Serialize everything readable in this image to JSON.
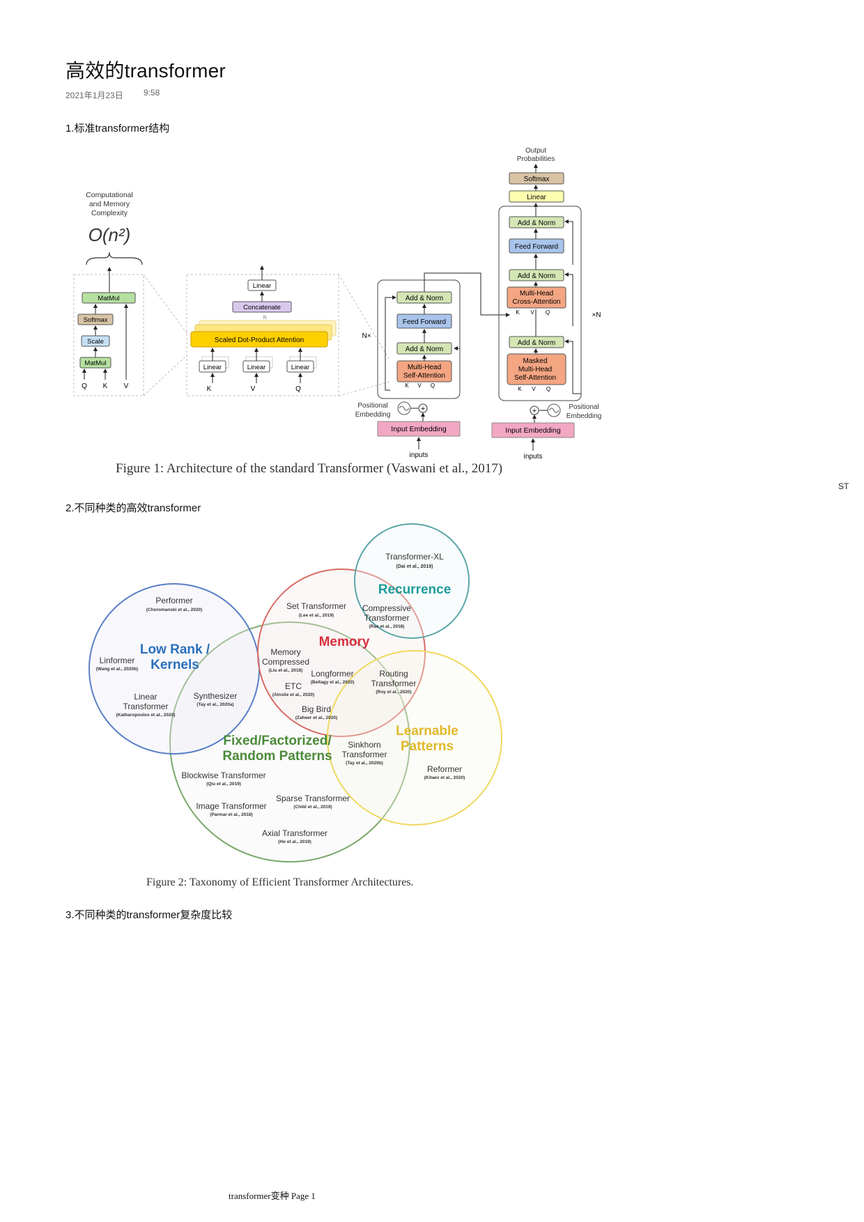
{
  "page": {
    "title": "高效的transformer",
    "date": "2021年1月23日",
    "time": "9:58",
    "side_marker": "ST",
    "footer": "transformer变种 Page 1"
  },
  "sections": [
    {
      "heading": "1.标准transformer结构"
    },
    {
      "heading": "2.不同种类的高效transformer"
    },
    {
      "heading": "3.不同种类的transformer复杂度比较"
    }
  ],
  "figure1": {
    "caption": "Figure 1:  Architecture of the standard Transformer (Vaswani et al., 2017)",
    "complexity_label": [
      "Computational",
      "and Memory",
      "Complexity"
    ],
    "complexity": "O(n²)",
    "attention_block": {
      "matmul_top": "MatMul",
      "softmax": "Softmax",
      "scale": "Scale",
      "matmul_bottom": "MatMul",
      "inputs": [
        "Q",
        "K",
        "V"
      ]
    },
    "multihead_block": {
      "linear_top": "Linear",
      "concat": "Concatenate",
      "sdpa": "Scaled Dot-Product Attention",
      "linears": [
        "Linear",
        "Linear",
        "Linear"
      ],
      "inputs": [
        "K",
        "V",
        "Q"
      ],
      "h_label": "h"
    },
    "encoder": {
      "add_norm": "Add & Norm",
      "ffn": "Feed Forward",
      "mhsa": [
        "Multi-Head",
        "Self-Attention"
      ],
      "repeat": "N×",
      "kvq": [
        "K",
        "V",
        "Q"
      ],
      "pos": [
        "Positional",
        "Embedding"
      ],
      "input_embedding": "Input Embedding",
      "inputs": "inputs"
    },
    "decoder": {
      "output_prob": [
        "Output",
        "Probabilities"
      ],
      "softmax": "Softmax",
      "linear": "Linear",
      "add_norm": "Add & Norm",
      "ffn": "Feed Forward",
      "cross": [
        "Multi-Head",
        "Cross-Attention"
      ],
      "masked": [
        "Masked",
        "Multi-Head",
        "Self-Attention"
      ],
      "repeat": "×N",
      "kvq": [
        "K",
        "V",
        "Q"
      ],
      "pos": [
        "Positional",
        "Embedding"
      ],
      "input_embedding": "Input Embedding",
      "inputs": "inputs"
    },
    "colors": {
      "add_norm": "#d4e6b5",
      "ffn": "#a9c4eb",
      "attention": "#f4a582",
      "embedding": "#f2a7c3",
      "softmax": "#d8c3a5",
      "linear": "#ffffb0",
      "sdpa": "#ffd000",
      "concat": "#d9c8ee",
      "scale": "#c5e0f5",
      "matmul": "#b5e0a0"
    }
  },
  "figure2": {
    "caption": "Figure 2:  Taxonomy of Efficient Transformer Architectures.",
    "categories": [
      {
        "name": "Low Rank /",
        "name2": "Kernels",
        "color": "#2a6fbb"
      },
      {
        "name": "Memory",
        "color": "#d8303c"
      },
      {
        "name": "Recurrence",
        "color": "#1e9c9c"
      },
      {
        "name": "Fixed/Factorized/",
        "name2": "Random Patterns",
        "color": "#4c8a3a"
      },
      {
        "name": "Learnable",
        "name2": "Patterns",
        "color": "#e0b82a"
      }
    ],
    "models": [
      {
        "name": "Transformer-XL",
        "cite": "(Dai et al., 2019)"
      },
      {
        "name": "Performer",
        "cite": "(Choromanski et al., 2020)"
      },
      {
        "name": "Set Transformer",
        "cite": "(Lee et al., 2019)"
      },
      {
        "name": "Compressive",
        "name2": "Transformer",
        "cite": "(Rae et al., 2018)"
      },
      {
        "name": "Linformer",
        "cite": "(Wang et al., 2020b)"
      },
      {
        "name": "Memory",
        "name2": "Compressed",
        "cite": "(Liu et al., 2018)"
      },
      {
        "name": "Longformer",
        "cite": "(Beltagy et al., 2020)"
      },
      {
        "name": "ETC",
        "cite": "(Ainslie et al., 2020)"
      },
      {
        "name": "Routing",
        "name2": "Transformer",
        "cite": "(Roy et al., 2020)"
      },
      {
        "name": "Linear",
        "name2": "Transformer",
        "cite": "(Katharopoulos et al., 2020)"
      },
      {
        "name": "Synthesizer",
        "cite": "(Tay et al., 2020a)"
      },
      {
        "name": "Big Bird",
        "cite": "(Zaheer et al., 2020)"
      },
      {
        "name": "Sinkhorn",
        "name2": "Transformer",
        "cite": "(Tay et al., 2020b)"
      },
      {
        "name": "Reformer",
        "cite": "(Kitaev et al., 2020)"
      },
      {
        "name": "Blockwise Transformer",
        "cite": "(Qiu et al., 2019)"
      },
      {
        "name": "Sparse Transformer",
        "cite": "(Child et al., 2019)"
      },
      {
        "name": "Image Transformer",
        "cite": "(Parmar et al., 2018)"
      },
      {
        "name": "Axial Transformer",
        "cite": "(Ho et al., 2019)"
      }
    ]
  }
}
